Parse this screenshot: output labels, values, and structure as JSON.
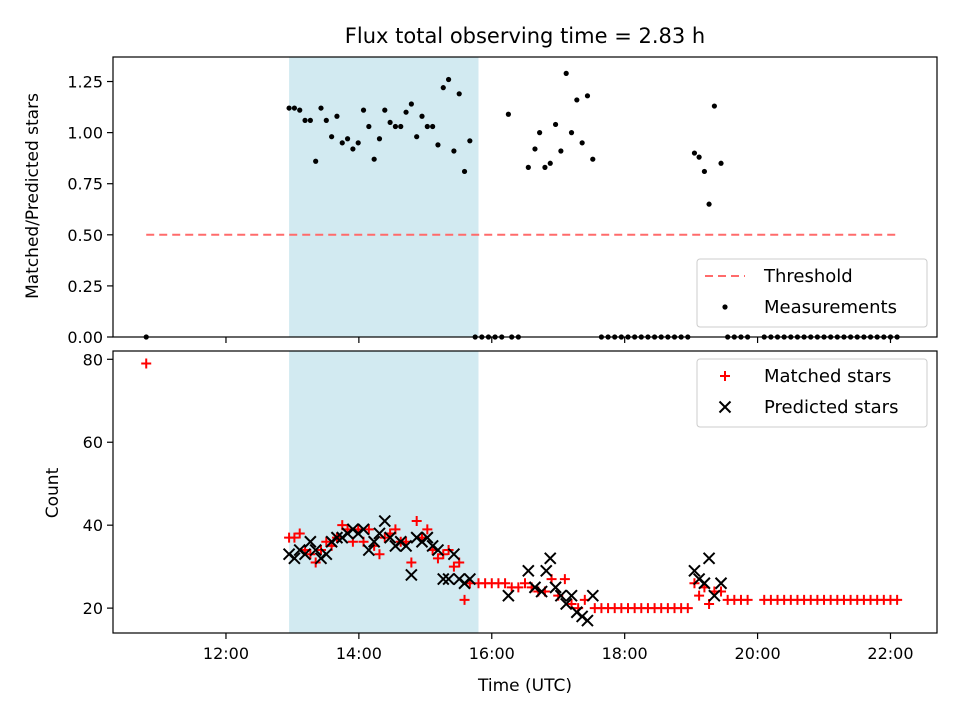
{
  "chart_data": [
    {
      "type": "scatter",
      "title": "Flux total observing time = 2.83 h",
      "xlabel": "",
      "ylabel": "Matched/Predicted stars",
      "x_unit": "hours UTC",
      "xlim": [
        10.3,
        22.7
      ],
      "ylim": [
        0.0,
        1.37
      ],
      "yticks": [
        0.0,
        0.25,
        0.5,
        0.75,
        1.0,
        1.25
      ],
      "ytick_labels": [
        "0.00",
        "0.25",
        "0.50",
        "0.75",
        "1.00",
        "1.25"
      ],
      "xticks": [
        12,
        14,
        16,
        18,
        20,
        22
      ],
      "shaded_interval": [
        12.95,
        15.8
      ],
      "shade_color": "#add8e6",
      "legend_position": "lower right",
      "series": [
        {
          "name": "Threshold",
          "kind": "dashed-line",
          "color": "#ff6b6b",
          "points": [
            [
              10.8,
              0.5
            ],
            [
              22.1,
              0.5
            ]
          ]
        },
        {
          "name": "Measurements",
          "kind": "dot",
          "color": "#000000",
          "points": [
            [
              10.8,
              0.0
            ],
            [
              12.95,
              1.12
            ],
            [
              13.03,
              1.12
            ],
            [
              13.11,
              1.11
            ],
            [
              13.19,
              1.06
            ],
            [
              13.27,
              1.06
            ],
            [
              13.35,
              0.86
            ],
            [
              13.43,
              1.12
            ],
            [
              13.51,
              1.06
            ],
            [
              13.59,
              0.98
            ],
            [
              13.67,
              1.08
            ],
            [
              13.75,
              0.95
            ],
            [
              13.83,
              0.97
            ],
            [
              13.91,
              0.92
            ],
            [
              13.99,
              0.95
            ],
            [
              14.07,
              1.11
            ],
            [
              14.15,
              1.03
            ],
            [
              14.23,
              0.87
            ],
            [
              14.31,
              0.97
            ],
            [
              14.39,
              1.11
            ],
            [
              14.47,
              1.05
            ],
            [
              14.55,
              1.03
            ],
            [
              14.63,
              1.03
            ],
            [
              14.71,
              1.1
            ],
            [
              14.79,
              1.14
            ],
            [
              14.87,
              0.98
            ],
            [
              14.95,
              1.08
            ],
            [
              15.03,
              1.03
            ],
            [
              15.11,
              1.03
            ],
            [
              15.19,
              0.94
            ],
            [
              15.27,
              1.22
            ],
            [
              15.35,
              1.26
            ],
            [
              15.43,
              0.91
            ],
            [
              15.51,
              1.19
            ],
            [
              15.59,
              0.81
            ],
            [
              15.67,
              0.96
            ],
            [
              15.75,
              0.0
            ],
            [
              15.85,
              0.0
            ],
            [
              15.95,
              0.0
            ],
            [
              16.05,
              0.0
            ],
            [
              16.15,
              0.0
            ],
            [
              16.3,
              0.0
            ],
            [
              16.4,
              0.0
            ],
            [
              16.25,
              1.09
            ],
            [
              16.55,
              0.83
            ],
            [
              16.65,
              0.92
            ],
            [
              16.72,
              1.0
            ],
            [
              16.8,
              0.83
            ],
            [
              16.88,
              0.85
            ],
            [
              16.96,
              1.04
            ],
            [
              17.04,
              0.91
            ],
            [
              17.12,
              1.29
            ],
            [
              17.2,
              1.0
            ],
            [
              17.28,
              1.16
            ],
            [
              17.36,
              0.95
            ],
            [
              17.44,
              1.18
            ],
            [
              17.52,
              0.87
            ],
            [
              17.65,
              0.0
            ],
            [
              17.75,
              0.0
            ],
            [
              17.85,
              0.0
            ],
            [
              17.95,
              0.0
            ],
            [
              18.05,
              0.0
            ],
            [
              18.15,
              0.0
            ],
            [
              18.25,
              0.0
            ],
            [
              18.35,
              0.0
            ],
            [
              18.45,
              0.0
            ],
            [
              18.55,
              0.0
            ],
            [
              18.65,
              0.0
            ],
            [
              18.75,
              0.0
            ],
            [
              18.85,
              0.0
            ],
            [
              18.95,
              0.0
            ],
            [
              19.05,
              0.9
            ],
            [
              19.12,
              0.88
            ],
            [
              19.2,
              0.81
            ],
            [
              19.27,
              0.65
            ],
            [
              19.35,
              1.13
            ],
            [
              19.45,
              0.85
            ],
            [
              19.55,
              0.0
            ],
            [
              19.65,
              0.0
            ],
            [
              19.75,
              0.0
            ],
            [
              19.85,
              0.0
            ],
            [
              20.1,
              0.0
            ],
            [
              20.2,
              0.0
            ],
            [
              20.3,
              0.0
            ],
            [
              20.4,
              0.0
            ],
            [
              20.5,
              0.0
            ],
            [
              20.6,
              0.0
            ],
            [
              20.7,
              0.0
            ],
            [
              20.8,
              0.0
            ],
            [
              20.9,
              0.0
            ],
            [
              21.0,
              0.0
            ],
            [
              21.1,
              0.0
            ],
            [
              21.2,
              0.0
            ],
            [
              21.3,
              0.0
            ],
            [
              21.4,
              0.0
            ],
            [
              21.5,
              0.0
            ],
            [
              21.6,
              0.0
            ],
            [
              21.7,
              0.0
            ],
            [
              21.8,
              0.0
            ],
            [
              21.9,
              0.0
            ],
            [
              22.0,
              0.0
            ],
            [
              22.1,
              0.0
            ]
          ]
        }
      ]
    },
    {
      "type": "scatter",
      "title": "",
      "xlabel": "Time (UTC)",
      "ylabel": "Count",
      "x_unit": "hours UTC",
      "xlim": [
        10.3,
        22.7
      ],
      "ylim": [
        14,
        82
      ],
      "yticks": [
        20,
        40,
        60,
        80
      ],
      "ytick_labels": [
        "20",
        "40",
        "60",
        "80"
      ],
      "xticks": [
        12,
        14,
        16,
        18,
        20,
        22
      ],
      "xtick_labels": [
        "12:00",
        "14:00",
        "16:00",
        "18:00",
        "20:00",
        "22:00"
      ],
      "shaded_interval": [
        12.95,
        15.8
      ],
      "shade_color": "#add8e6",
      "legend_position": "upper right",
      "series": [
        {
          "name": "Matched stars",
          "kind": "plus",
          "color": "#ff0000",
          "points": [
            [
              10.8,
              79
            ],
            [
              12.95,
              37
            ],
            [
              13.03,
              37
            ],
            [
              13.11,
              38
            ],
            [
              13.19,
              34
            ],
            [
              13.27,
              33
            ],
            [
              13.35,
              31
            ],
            [
              13.43,
              34
            ],
            [
              13.51,
              36
            ],
            [
              13.59,
              35
            ],
            [
              13.67,
              37
            ],
            [
              13.75,
              40
            ],
            [
              13.83,
              39
            ],
            [
              13.91,
              36
            ],
            [
              13.99,
              39
            ],
            [
              14.07,
              36
            ],
            [
              14.15,
              39
            ],
            [
              14.23,
              35
            ],
            [
              14.31,
              33
            ],
            [
              14.39,
              37
            ],
            [
              14.47,
              38
            ],
            [
              14.55,
              39
            ],
            [
              14.63,
              36
            ],
            [
              14.71,
              36
            ],
            [
              14.79,
              31
            ],
            [
              14.87,
              41
            ],
            [
              14.95,
              37
            ],
            [
              15.03,
              39
            ],
            [
              15.11,
              34
            ],
            [
              15.19,
              32
            ],
            [
              15.27,
              33
            ],
            [
              15.35,
              34
            ],
            [
              15.43,
              30
            ],
            [
              15.51,
              31
            ],
            [
              15.59,
              22
            ],
            [
              15.67,
              26
            ],
            [
              15.8,
              26
            ],
            [
              15.9,
              26
            ],
            [
              16.0,
              26
            ],
            [
              16.1,
              26
            ],
            [
              16.2,
              26
            ],
            [
              16.3,
              25
            ],
            [
              16.4,
              25
            ],
            [
              16.5,
              26
            ],
            [
              16.6,
              25
            ],
            [
              16.7,
              24
            ],
            [
              16.8,
              24
            ],
            [
              16.9,
              27
            ],
            [
              17.0,
              23
            ],
            [
              17.1,
              27
            ],
            [
              17.2,
              21
            ],
            [
              17.3,
              20
            ],
            [
              17.4,
              22
            ],
            [
              17.55,
              20
            ],
            [
              17.65,
              20
            ],
            [
              17.75,
              20
            ],
            [
              17.85,
              20
            ],
            [
              17.95,
              20
            ],
            [
              18.05,
              20
            ],
            [
              18.15,
              20
            ],
            [
              18.25,
              20
            ],
            [
              18.35,
              20
            ],
            [
              18.45,
              20
            ],
            [
              18.55,
              20
            ],
            [
              18.65,
              20
            ],
            [
              18.75,
              20
            ],
            [
              18.85,
              20
            ],
            [
              18.95,
              20
            ],
            [
              19.05,
              26
            ],
            [
              19.12,
              23
            ],
            [
              19.2,
              25
            ],
            [
              19.27,
              21
            ],
            [
              19.35,
              24
            ],
            [
              19.45,
              24
            ],
            [
              19.55,
              22
            ],
            [
              19.65,
              22
            ],
            [
              19.75,
              22
            ],
            [
              19.85,
              22
            ],
            [
              20.1,
              22
            ],
            [
              20.2,
              22
            ],
            [
              20.3,
              22
            ],
            [
              20.4,
              22
            ],
            [
              20.5,
              22
            ],
            [
              20.6,
              22
            ],
            [
              20.7,
              22
            ],
            [
              20.8,
              22
            ],
            [
              20.9,
              22
            ],
            [
              21.0,
              22
            ],
            [
              21.1,
              22
            ],
            [
              21.2,
              22
            ],
            [
              21.3,
              22
            ],
            [
              21.4,
              22
            ],
            [
              21.5,
              22
            ],
            [
              21.6,
              22
            ],
            [
              21.7,
              22
            ],
            [
              21.8,
              22
            ],
            [
              21.9,
              22
            ],
            [
              22.0,
              22
            ],
            [
              22.1,
              22
            ]
          ]
        },
        {
          "name": "Predicted stars",
          "kind": "cross",
          "color": "#000000",
          "points": [
            [
              12.95,
              33
            ],
            [
              13.03,
              32
            ],
            [
              13.11,
              34
            ],
            [
              13.19,
              33
            ],
            [
              13.27,
              36
            ],
            [
              13.35,
              34
            ],
            [
              13.43,
              32
            ],
            [
              13.51,
              33
            ],
            [
              13.59,
              36
            ],
            [
              13.67,
              37
            ],
            [
              13.75,
              37
            ],
            [
              13.83,
              38
            ],
            [
              13.91,
              39
            ],
            [
              13.99,
              38
            ],
            [
              14.07,
              39
            ],
            [
              14.15,
              34
            ],
            [
              14.23,
              36
            ],
            [
              14.31,
              38
            ],
            [
              14.39,
              41
            ],
            [
              14.47,
              37
            ],
            [
              14.55,
              35
            ],
            [
              14.63,
              36
            ],
            [
              14.71,
              35
            ],
            [
              14.79,
              28
            ],
            [
              14.87,
              37
            ],
            [
              14.95,
              36
            ],
            [
              15.03,
              37
            ],
            [
              15.11,
              35
            ],
            [
              15.19,
              34
            ],
            [
              15.27,
              27
            ],
            [
              15.35,
              27
            ],
            [
              15.43,
              33
            ],
            [
              15.51,
              27
            ],
            [
              15.59,
              26
            ],
            [
              15.67,
              27
            ],
            [
              16.25,
              23
            ],
            [
              16.55,
              29
            ],
            [
              16.65,
              25
            ],
            [
              16.75,
              24
            ],
            [
              16.82,
              29
            ],
            [
              16.88,
              32
            ],
            [
              16.96,
              25
            ],
            [
              17.04,
              23
            ],
            [
              17.12,
              21
            ],
            [
              17.2,
              23
            ],
            [
              17.28,
              19
            ],
            [
              17.36,
              18
            ],
            [
              17.44,
              17
            ],
            [
              17.52,
              23
            ],
            [
              19.05,
              29
            ],
            [
              19.12,
              27
            ],
            [
              19.2,
              26
            ],
            [
              19.27,
              32
            ],
            [
              19.35,
              23
            ],
            [
              19.45,
              26
            ]
          ]
        }
      ]
    }
  ]
}
